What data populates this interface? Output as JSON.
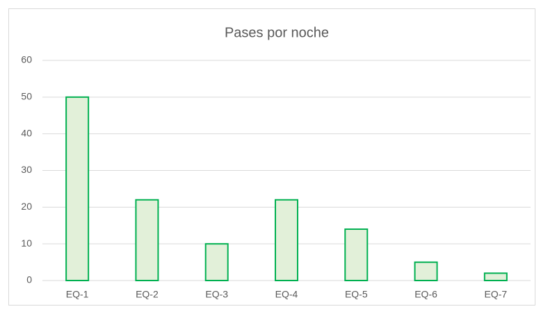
{
  "chart_data": {
    "type": "bar",
    "title": "Pases por noche",
    "categories": [
      "EQ-1",
      "EQ-2",
      "EQ-3",
      "EQ-4",
      "EQ-5",
      "EQ-6",
      "EQ-7"
    ],
    "values": [
      50,
      22,
      10,
      22,
      14,
      5,
      2
    ],
    "color": "#e2f0d9",
    "edgecolor": "#00b050",
    "ylim": [
      0,
      60
    ],
    "yticks": [
      0,
      10,
      20,
      30,
      40,
      50,
      60
    ],
    "grid": true
  }
}
